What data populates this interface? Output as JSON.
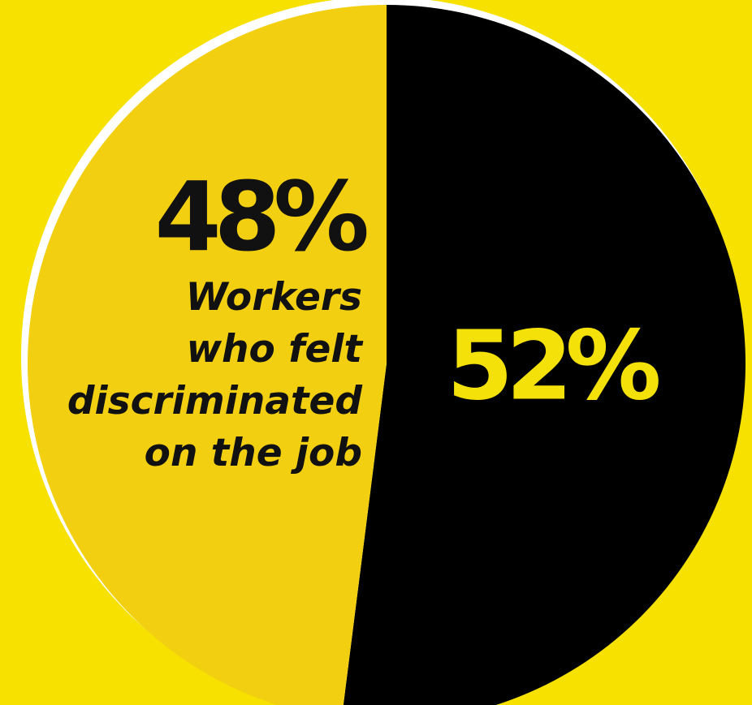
{
  "chart_data": {
    "type": "pie",
    "start_angle_deg": 0,
    "direction": "clockwise",
    "slices": [
      {
        "label": "52%",
        "value": 52,
        "color": "#000000"
      },
      {
        "label": "48%",
        "value": 48,
        "color": "#f2cf10",
        "description": [
          "Workers",
          "who felt",
          "discriminated",
          "on the job"
        ]
      }
    ]
  },
  "colors": {
    "background": "#f6e100",
    "rim": "#ffffff",
    "label_on_dark": "#f4e10a",
    "label_on_light": "#111111"
  }
}
